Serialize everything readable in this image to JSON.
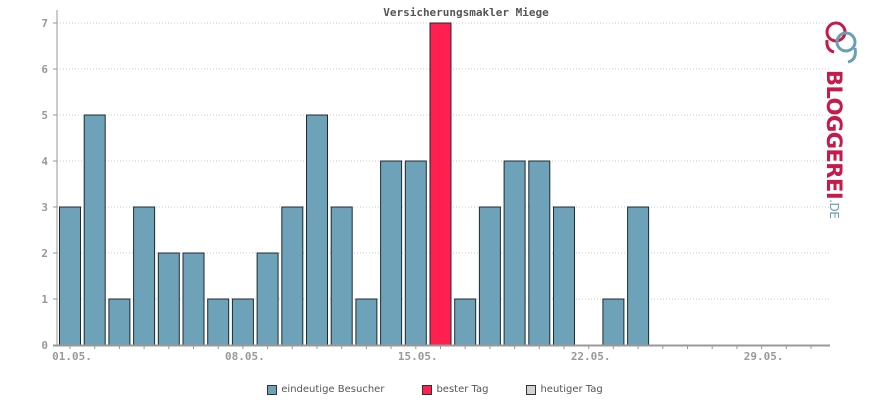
{
  "chart_data": {
    "type": "bar",
    "title": "Versicherungsmakler Miege",
    "xlabel": "",
    "ylabel": "",
    "ylim": [
      0,
      7
    ],
    "yticks": [
      0,
      1,
      2,
      3,
      4,
      5,
      6,
      7
    ],
    "grid": true,
    "days": 31,
    "xtick_labels": [
      {
        "day": 1,
        "label": "01.05."
      },
      {
        "day": 8,
        "label": "08.05."
      },
      {
        "day": 15,
        "label": "15.05."
      },
      {
        "day": 22,
        "label": "22.05."
      },
      {
        "day": 29,
        "label": "29.05."
      }
    ],
    "values": [
      3,
      5,
      1,
      3,
      2,
      2,
      1,
      1,
      2,
      3,
      5,
      3,
      1,
      4,
      4,
      7,
      1,
      3,
      4,
      4,
      3,
      0,
      1,
      3,
      0,
      0,
      0,
      0,
      0,
      0,
      0
    ],
    "best_day_index": 15,
    "colors": {
      "bar": "#6ea2b9",
      "best": "#ff2050",
      "today": "#d2d2d2",
      "grid": "#c8c8c8",
      "axis": "#999999"
    },
    "legend": {
      "placement": "bottom-center",
      "items": [
        {
          "label": "eindeutige Besucher",
          "color": "#6ea2b9"
        },
        {
          "label": "bester Tag",
          "color": "#ff2050"
        },
        {
          "label": "heutiger Tag",
          "color": "#d2d2d2"
        }
      ]
    }
  },
  "logo": {
    "name": "BLOGGEREI",
    "tld": ".DE"
  }
}
